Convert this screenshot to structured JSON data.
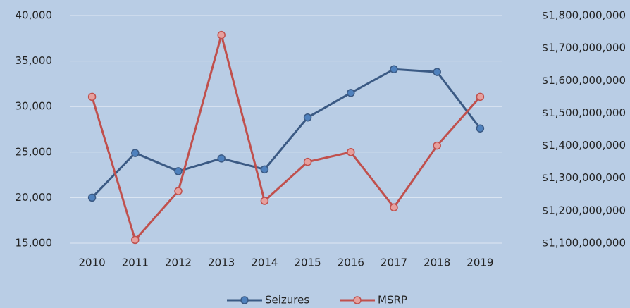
{
  "chart_data": {
    "type": "line",
    "categories": [
      "2010",
      "2011",
      "2012",
      "2013",
      "2014",
      "2015",
      "2016",
      "2017",
      "2018",
      "2019"
    ],
    "series": [
      {
        "name": "Seizures",
        "color": "#3b5a84",
        "marker_color": "#4f81bd",
        "values": [
          20000,
          24900,
          22900,
          24300,
          23100,
          28800,
          31500,
          34100,
          33800,
          27600
        ]
      },
      {
        "name": "MSRP",
        "color": "#c0504d",
        "marker_color": "#e6a09e",
        "axis": "y2",
        "values": [
          1550000000,
          1110000000,
          1260000000,
          1740000000,
          1230000000,
          1350000000,
          1380000000,
          1210000000,
          1400000000,
          1550000000
        ]
      }
    ],
    "ylim": [
      15000,
      40000
    ],
    "yticks": [
      {
        "value": 15000,
        "label": "15,000"
      },
      {
        "value": 20000,
        "label": "20,000"
      },
      {
        "value": 25000,
        "label": "25,000"
      },
      {
        "value": 30000,
        "label": "30,000"
      },
      {
        "value": 35000,
        "label": "35,000"
      },
      {
        "value": 40000,
        "label": "40,000"
      }
    ],
    "y2lim": [
      1100000000,
      1800000000
    ],
    "y2ticks": [
      {
        "value": 1100000000,
        "label": "$1,100,000,000"
      },
      {
        "value": 1200000000,
        "label": "$1,200,000,000"
      },
      {
        "value": 1300000000,
        "label": "$1,300,000,000"
      },
      {
        "value": 1400000000,
        "label": "$1,400,000,000"
      },
      {
        "value": 1500000000,
        "label": "$1,500,000,000"
      },
      {
        "value": 1600000000,
        "label": "$1,600,000,000"
      },
      {
        "value": 1700000000,
        "label": "$1,700,000,000"
      },
      {
        "value": 1800000000,
        "label": "$1,800,000,000"
      }
    ],
    "grid": true,
    "legend": "bottom",
    "background": "#b9cde5"
  }
}
